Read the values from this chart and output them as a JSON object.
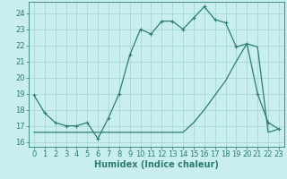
{
  "xlabel": "Humidex (Indice chaleur)",
  "bg_color": "#c8eef0",
  "line_color": "#2e7d6e",
  "grid_color": "#a8d8d0",
  "xlim": [
    -0.5,
    23.5
  ],
  "ylim": [
    15.7,
    24.7
  ],
  "yticks": [
    16,
    17,
    18,
    19,
    20,
    21,
    22,
    23,
    24
  ],
  "xticks": [
    0,
    1,
    2,
    3,
    4,
    5,
    6,
    7,
    8,
    9,
    10,
    11,
    12,
    13,
    14,
    15,
    16,
    17,
    18,
    19,
    20,
    21,
    22,
    23
  ],
  "line1_x": [
    0,
    1,
    2,
    3,
    4,
    5,
    6,
    7,
    8,
    9,
    10,
    11,
    12,
    13,
    14,
    15,
    16,
    17,
    18,
    19,
    20,
    21,
    22,
    23
  ],
  "line1_y": [
    18.9,
    17.8,
    17.2,
    17.0,
    17.0,
    17.2,
    16.2,
    17.5,
    19.0,
    21.4,
    23.0,
    22.7,
    23.5,
    23.5,
    23.0,
    23.7,
    24.4,
    23.6,
    23.4,
    21.9,
    22.1,
    19.0,
    17.2,
    16.8
  ],
  "line2_x": [
    0,
    1,
    2,
    3,
    4,
    5,
    6,
    7,
    8,
    9,
    10,
    11,
    12,
    13,
    14,
    15,
    16,
    17,
    18,
    19,
    20,
    21,
    22,
    23
  ],
  "line2_y": [
    16.6,
    16.6,
    16.6,
    16.6,
    16.6,
    16.6,
    16.6,
    16.6,
    16.6,
    16.6,
    16.6,
    16.6,
    16.6,
    16.6,
    16.6,
    17.2,
    18.0,
    18.9,
    19.8,
    21.0,
    22.1,
    21.9,
    16.6,
    16.8
  ],
  "tick_fontsize": 6,
  "label_fontsize": 7
}
